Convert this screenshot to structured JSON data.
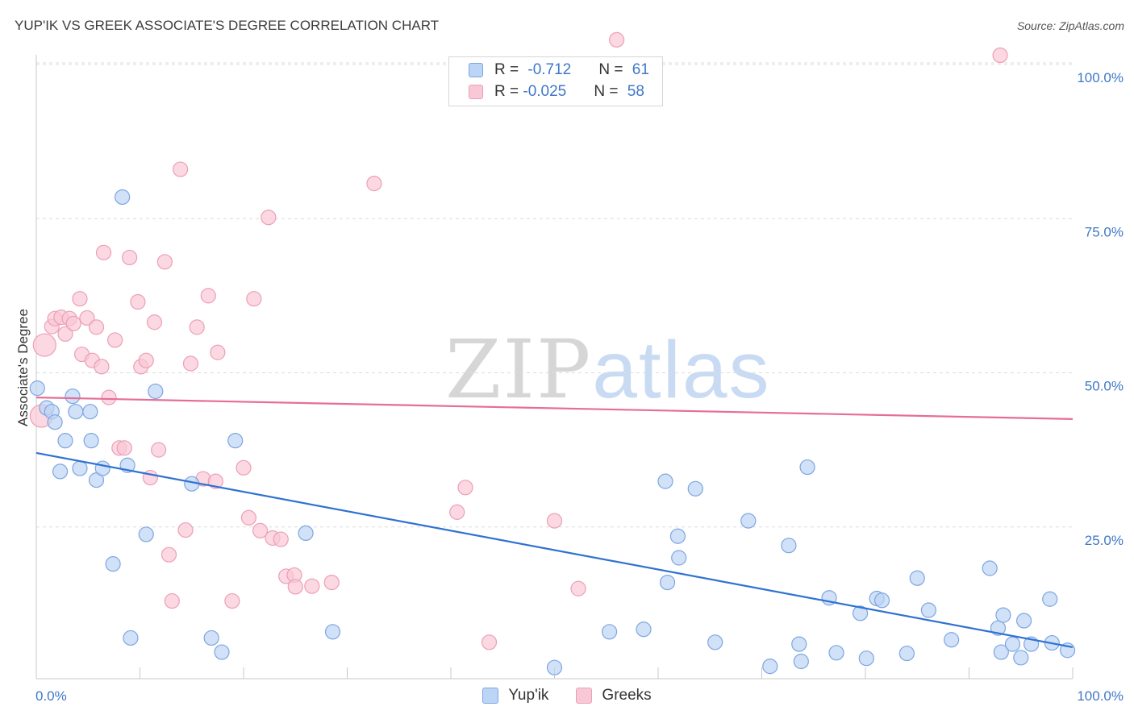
{
  "title": "YUP'IK VS GREEK ASSOCIATE'S DEGREE CORRELATION CHART",
  "source": "Source: ZipAtlas.com",
  "watermark": {
    "left": "ZIP",
    "right": "atlas"
  },
  "legend": {
    "rows": [
      {
        "r_label": "R = ",
        "r_value": "-0.712",
        "n_label": "N = ",
        "n_value": "61"
      },
      {
        "r_label": "R = ",
        "r_value": "-0.025",
        "n_label": "N = ",
        "n_value": "58"
      }
    ]
  },
  "bottom_legend": [
    "Yup'ik",
    "Greeks"
  ],
  "colors": {
    "blue_fill": "#bcd4f5",
    "blue_stroke": "#7ea6e0",
    "blue_line": "#2f72d2",
    "pink_fill": "#f9c8d6",
    "pink_stroke": "#ec9fb7",
    "pink_line": "#e66e96",
    "tick_text": "#3f78c8"
  },
  "chart_data": {
    "type": "scatter",
    "title": "YUP'IK VS GREEK ASSOCIATE'S DEGREE CORRELATION CHART",
    "xlabel": "",
    "ylabel": "Associate's Degree",
    "xlim": [
      0,
      100
    ],
    "ylim": [
      0,
      100
    ],
    "x_tick_labels": [
      "0.0%",
      "100.0%"
    ],
    "y_tick_labels": [
      "100.0%",
      "75.0%",
      "50.0%",
      "25.0%"
    ],
    "y_ticks": [
      100,
      75,
      50,
      25
    ],
    "series": [
      {
        "name": "Yup'ik",
        "color": "#7ea6e0",
        "r": -0.712,
        "n": 61,
        "trend": {
          "x": [
            0,
            100
          ],
          "y": [
            37.0,
            5.5
          ]
        },
        "points": [
          [
            0.1,
            47.5
          ],
          [
            1.0,
            44.3
          ],
          [
            1.5,
            43.7
          ],
          [
            1.8,
            42
          ],
          [
            2.3,
            34
          ],
          [
            2.8,
            39
          ],
          [
            3.5,
            46.2
          ],
          [
            3.8,
            43.7
          ],
          [
            4.2,
            34.5
          ],
          [
            5.2,
            43.7
          ],
          [
            5.3,
            39
          ],
          [
            5.8,
            32.6
          ],
          [
            6.4,
            34.5
          ],
          [
            7.4,
            19
          ],
          [
            8.3,
            78.5
          ],
          [
            8.8,
            35
          ],
          [
            9.1,
            7
          ],
          [
            10.6,
            23.8
          ],
          [
            11.5,
            47
          ],
          [
            15.0,
            32
          ],
          [
            16.9,
            7
          ],
          [
            17.9,
            4.7
          ],
          [
            19.2,
            39
          ],
          [
            26.0,
            24
          ],
          [
            28.6,
            8
          ],
          [
            50.0,
            2.2
          ],
          [
            55.3,
            8
          ],
          [
            58.6,
            8.4
          ],
          [
            60.9,
            16
          ],
          [
            62.0,
            20
          ],
          [
            60.7,
            32.4
          ],
          [
            61.9,
            23.5
          ],
          [
            63.6,
            31.2
          ],
          [
            65.5,
            6.3
          ],
          [
            68.7,
            26
          ],
          [
            70.8,
            2.4
          ],
          [
            72.6,
            22
          ],
          [
            73.6,
            6
          ],
          [
            73.8,
            3.2
          ],
          [
            74.4,
            34.7
          ],
          [
            76.5,
            13.5
          ],
          [
            77.2,
            4.6
          ],
          [
            79.5,
            11
          ],
          [
            80.1,
            3.7
          ],
          [
            81.1,
            13.4
          ],
          [
            81.6,
            13.1
          ],
          [
            84.0,
            4.5
          ],
          [
            85.0,
            16.7
          ],
          [
            86.1,
            11.5
          ],
          [
            88.3,
            6.7
          ],
          [
            92.0,
            18.3
          ],
          [
            92.8,
            8.6
          ],
          [
            93.1,
            4.7
          ],
          [
            93.3,
            10.7
          ],
          [
            94.2,
            6
          ],
          [
            95.0,
            3.8
          ],
          [
            95.3,
            9.8
          ],
          [
            96.0,
            6
          ],
          [
            97.8,
            13.3
          ],
          [
            98.0,
            6.2
          ],
          [
            99.5,
            5
          ]
        ]
      },
      {
        "name": "Greeks",
        "color": "#ec9fb7",
        "r": -0.025,
        "n": 58,
        "trend": {
          "x": [
            0,
            100
          ],
          "y": [
            46.0,
            42.5
          ]
        },
        "points": [
          [
            0.5,
            43
          ],
          [
            0.8,
            54.5
          ],
          [
            1.5,
            57.5
          ],
          [
            1.8,
            58.8
          ],
          [
            2.4,
            59
          ],
          [
            2.8,
            56.3
          ],
          [
            3.2,
            58.8
          ],
          [
            3.6,
            58
          ],
          [
            4.2,
            62
          ],
          [
            4.4,
            53
          ],
          [
            4.9,
            58.9
          ],
          [
            5.4,
            52
          ],
          [
            5.8,
            57.4
          ],
          [
            6.3,
            51
          ],
          [
            6.5,
            69.5
          ],
          [
            7.0,
            46
          ],
          [
            7.6,
            55.3
          ],
          [
            8.0,
            37.8
          ],
          [
            8.5,
            37.8
          ],
          [
            9.0,
            68.7
          ],
          [
            9.8,
            61.5
          ],
          [
            10.1,
            51
          ],
          [
            10.6,
            52
          ],
          [
            11.0,
            33
          ],
          [
            11.4,
            58.2
          ],
          [
            11.8,
            37.5
          ],
          [
            12.4,
            68
          ],
          [
            12.8,
            20.5
          ],
          [
            13.1,
            13
          ],
          [
            13.9,
            83
          ],
          [
            14.4,
            24.5
          ],
          [
            14.9,
            51.5
          ],
          [
            15.5,
            57.4
          ],
          [
            16.1,
            32.8
          ],
          [
            16.6,
            62.5
          ],
          [
            17.3,
            32.4
          ],
          [
            17.5,
            53.3
          ],
          [
            18.9,
            13
          ],
          [
            20.0,
            34.6
          ],
          [
            20.5,
            26.5
          ],
          [
            21.0,
            62
          ],
          [
            21.6,
            24.4
          ],
          [
            22.4,
            75.2
          ],
          [
            22.8,
            23.2
          ],
          [
            23.6,
            23
          ],
          [
            24.1,
            17
          ],
          [
            24.9,
            17.2
          ],
          [
            25.0,
            15.3
          ],
          [
            26.6,
            15.4
          ],
          [
            28.5,
            16
          ],
          [
            32.6,
            80.7
          ],
          [
            40.6,
            27.4
          ],
          [
            41.4,
            31.4
          ],
          [
            43.7,
            6.3
          ],
          [
            50.0,
            26
          ],
          [
            52.3,
            15
          ],
          [
            56.0,
            104.0
          ],
          [
            93.0,
            101.5
          ]
        ]
      }
    ]
  }
}
